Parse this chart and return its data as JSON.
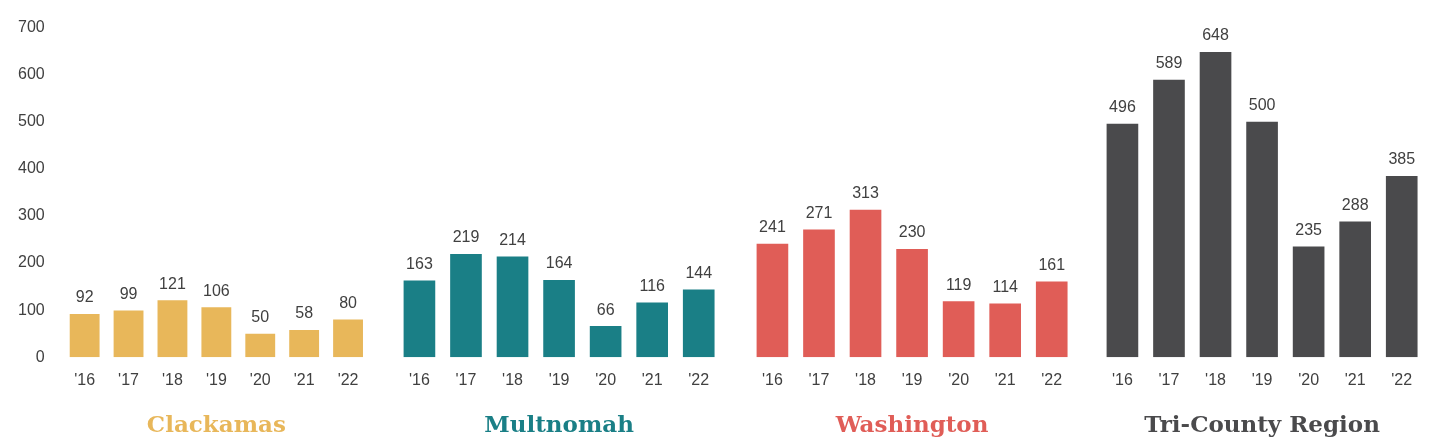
{
  "chart_data": [
    {
      "type": "bar",
      "xlabel": "Clackamas",
      "categories": [
        "'16",
        "'17",
        "'18",
        "'19",
        "'20",
        "'21",
        "'22"
      ],
      "values": [
        92,
        99,
        121,
        106,
        50,
        58,
        80
      ],
      "color": "#e8b75a",
      "ylim": [
        0,
        700
      ],
      "yticks": [
        0,
        100,
        200,
        300,
        400,
        500,
        600,
        700
      ],
      "data_labels": true,
      "grid": false
    },
    {
      "type": "bar",
      "xlabel": "Multnomah",
      "categories": [
        "'16",
        "'17",
        "'18",
        "'19",
        "'20",
        "'21",
        "'22"
      ],
      "values": [
        163,
        219,
        214,
        164,
        66,
        116,
        144
      ],
      "color": "#1a7f86",
      "ylim": [
        0,
        700
      ],
      "tick_labels": "x",
      "data_labels": true,
      "grid": false
    },
    {
      "type": "bar",
      "xlabel": "Washington",
      "categories": [
        "'16",
        "'17",
        "'18",
        "'19",
        "'20",
        "'21",
        "'22"
      ],
      "values": [
        241,
        271,
        313,
        230,
        119,
        114,
        161
      ],
      "color": "#e05d57",
      "ylim": [
        0,
        700
      ],
      "tick_labels": "x",
      "data_labels": true,
      "grid": false
    },
    {
      "type": "bar",
      "xlabel": "Tri-County Region",
      "categories": [
        "'16",
        "'17",
        "'18",
        "'19",
        "'20",
        "'21",
        "'22"
      ],
      "values": [
        496,
        589,
        648,
        500,
        235,
        288,
        385
      ],
      "color": "#4a4a4c",
      "ylim": [
        0,
        700
      ],
      "tick_labels": "x",
      "data_labels": true,
      "grid": false
    }
  ]
}
